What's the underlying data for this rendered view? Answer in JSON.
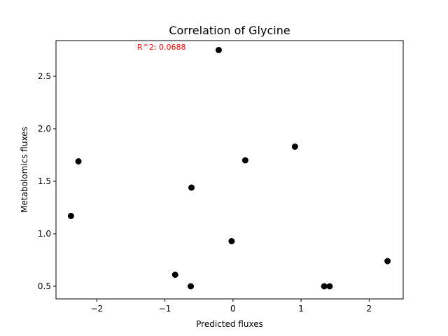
{
  "chart_data": {
    "type": "scatter",
    "title": "Correlation of Glycine",
    "xlabel": "Predicted fluxes",
    "ylabel": "Metabolomics fluxes",
    "xlim": [
      -2.6,
      2.5
    ],
    "ylim": [
      0.38,
      2.84
    ],
    "x_ticks": [
      -2,
      -1,
      0,
      1,
      2
    ],
    "x_tick_labels": [
      "−2",
      "−1",
      "0",
      "1",
      "2"
    ],
    "y_ticks": [
      0.5,
      1.0,
      1.5,
      2.0,
      2.5
    ],
    "y_tick_labels": [
      "0.5",
      "1.0",
      "1.5",
      "2.0",
      "2.5"
    ],
    "grid": false,
    "marker_color": "#000000",
    "annotation": {
      "text": "R^2: 0.0688",
      "color": "#ff0000",
      "x": -1.05,
      "y": 2.78
    },
    "points": [
      {
        "x": -0.21,
        "y": 2.75
      },
      {
        "x": 0.91,
        "y": 1.83
      },
      {
        "x": 0.18,
        "y": 1.7
      },
      {
        "x": -2.27,
        "y": 1.69
      },
      {
        "x": -0.61,
        "y": 1.44
      },
      {
        "x": -2.38,
        "y": 1.17
      },
      {
        "x": -0.02,
        "y": 0.93
      },
      {
        "x": 2.27,
        "y": 0.74
      },
      {
        "x": -0.85,
        "y": 0.61
      },
      {
        "x": -0.62,
        "y": 0.5
      },
      {
        "x": 1.34,
        "y": 0.5
      },
      {
        "x": 1.42,
        "y": 0.5
      }
    ]
  }
}
